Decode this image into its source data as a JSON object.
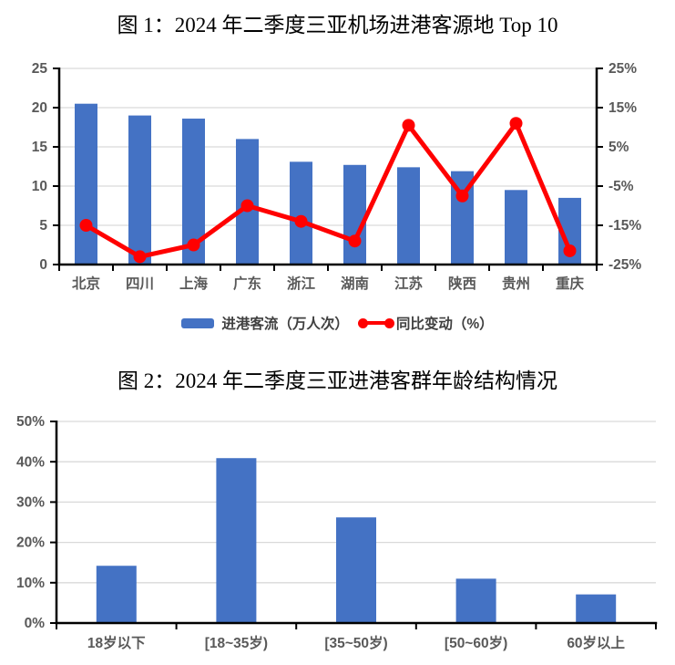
{
  "colors": {
    "bar_blue": "#4472C4",
    "line_red": "#FF0000",
    "gridline": "#D9D9D9",
    "axis_line": "#000000",
    "tick_label": "#595959",
    "legend_text": "#404040",
    "title_text": "#000000",
    "background": "#FFFFFF"
  },
  "chart_data": [
    {
      "id": "figure1",
      "type": "bar",
      "subtype": "combo-bar-line-dual-axis",
      "title": "图 1：2024 年二季度三亚机场进港客源地 Top 10",
      "categories": [
        "北京",
        "四川",
        "上海",
        "广东",
        "浙江",
        "湖南",
        "江苏",
        "陕西",
        "贵州",
        "重庆"
      ],
      "series": [
        {
          "name": "进港客流（万人次）",
          "type": "bar",
          "axis": "left",
          "color": "#4472C4",
          "values": [
            20.5,
            19.0,
            18.6,
            16.0,
            13.1,
            12.7,
            12.4,
            11.9,
            9.5,
            8.5
          ]
        },
        {
          "name": "同比变动（%）",
          "type": "line",
          "axis": "right",
          "color": "#FF0000",
          "marker": "circle",
          "values": [
            -15.0,
            -23.0,
            -20.0,
            -10.0,
            -14.0,
            -19.0,
            10.5,
            -7.5,
            11.0,
            -21.5
          ]
        }
      ],
      "left_axis": {
        "min": 0,
        "max": 25,
        "step": 5,
        "ticks": [
          "0",
          "5",
          "10",
          "15",
          "20",
          "25"
        ]
      },
      "right_axis": {
        "min": -25,
        "max": 25,
        "step": 10,
        "ticks": [
          "-25%",
          "-15%",
          "-5%",
          "5%",
          "15%",
          "25%"
        ]
      },
      "grid": true,
      "legend_position": "bottom"
    },
    {
      "id": "figure2",
      "type": "bar",
      "title": "图 2：2024 年二季度三亚进港客群年龄结构情况",
      "categories": [
        "18岁以下",
        "[18~35岁)",
        "[35~50岁)",
        "[50~60岁)",
        "60岁以上"
      ],
      "values": [
        14.2,
        40.9,
        26.2,
        11.0,
        7.1
      ],
      "unit": "%",
      "bar_color": "#4472C4",
      "y_axis": {
        "min": 0,
        "max": 50,
        "step": 10,
        "ticks": [
          "0%",
          "10%",
          "20%",
          "30%",
          "40%",
          "50%"
        ]
      },
      "ylim": [
        0,
        50
      ],
      "grid": true,
      "legend_position": "none"
    }
  ]
}
